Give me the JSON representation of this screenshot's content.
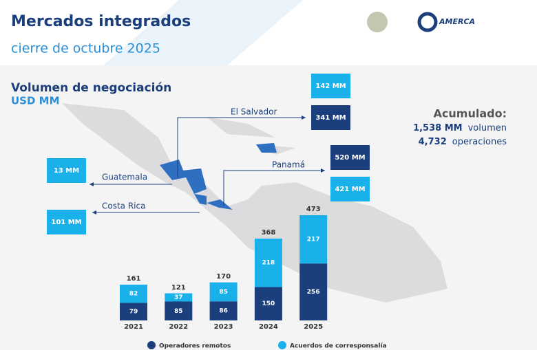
{
  "header": {
    "title": "Mercados integrados",
    "subtitle": "cierre de octubre 2025",
    "logo_text": "AMERCA"
  },
  "section": {
    "title": "Volumen de negociación",
    "unit": "USD MM"
  },
  "accumulated": {
    "title": "Acumulado:",
    "volume": "1,538 MM",
    "volume_label": "volumen",
    "operations": "4,732",
    "operations_label": "operaciones"
  },
  "countries": [
    {
      "name": "El Salvador",
      "labels": [
        "142 MM",
        "341 MM"
      ]
    },
    {
      "name": "Guatemala",
      "labels": [
        "13 MM"
      ]
    },
    {
      "name": "Costa Rica",
      "labels": [
        "101 MM"
      ]
    },
    {
      "name": "Panamá",
      "labels": [
        "520 MM",
        "421 MM"
      ]
    }
  ],
  "chart_data": {
    "type": "bar",
    "stacked": true,
    "categories": [
      "2021",
      "2022",
      "2023",
      "2024",
      "2025"
    ],
    "totals": [
      161,
      121,
      170,
      368,
      473
    ],
    "series": [
      {
        "name": "Operadores remotos",
        "color": "#1b3f7c",
        "values": [
          79,
          85,
          86,
          150,
          256
        ]
      },
      {
        "name": "Acuerdos de corresponsalía",
        "color": "#1ab0ea",
        "values": [
          82,
          37,
          85,
          218,
          217
        ]
      }
    ]
  }
}
